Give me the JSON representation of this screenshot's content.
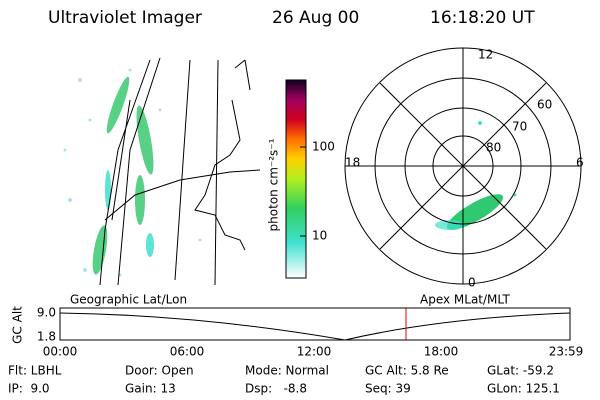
{
  "header": {
    "title": "Ultraviolet Imager",
    "date": "26 Aug 00",
    "time": "16:18:20 UT"
  },
  "colorbar": {
    "label": "photon cm⁻²s⁻¹",
    "ticks": [
      "100",
      "10"
    ]
  },
  "polar": {
    "mlt_labels": [
      "12",
      "18",
      "6",
      "0"
    ],
    "lat_labels": [
      "60",
      "70",
      "80"
    ]
  },
  "panels": {
    "left": "Geographic Lat/Lon",
    "right": "Apex MLat/MLT"
  },
  "altitude": {
    "axis_label": "GC Alt",
    "yticks": [
      "9.0",
      "1.8"
    ],
    "xticks": [
      "00:00",
      "06:00",
      "12:00",
      "18:00",
      "23:59"
    ]
  },
  "info": {
    "rows": [
      [
        "Flt: LBHL",
        "Door: Open",
        "Mode: Normal",
        "GC Alt: 5.8 Re",
        "GLat: -59.2"
      ],
      [
        "IP:  9.0",
        "Gain: 13",
        "Dsp:   -8.8",
        "Seq: 39",
        "GLon: 125.1"
      ]
    ]
  }
}
